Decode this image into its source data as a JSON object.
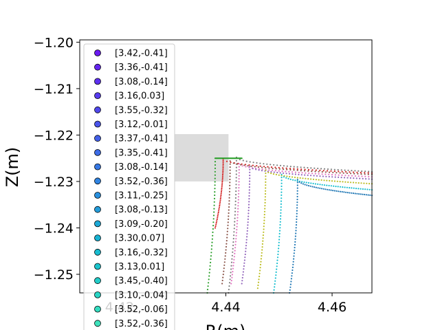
{
  "chart_data": {
    "type": "scatter",
    "xlabel": "R(m)",
    "ylabel": "Z(m)",
    "xlim": [
      4.4125,
      4.4675
    ],
    "ylim": [
      -1.254,
      -1.1995
    ],
    "x_ticks": [
      "4.42",
      "4.44",
      "4.46"
    ],
    "x_tick_values": [
      4.42,
      4.44,
      4.46
    ],
    "y_ticks": [
      "−1.20",
      "−1.21",
      "−1.22",
      "−1.23",
      "−1.24",
      "−1.25"
    ],
    "y_tick_values": [
      -1.2,
      -1.21,
      -1.22,
      -1.23,
      -1.24,
      -1.25
    ],
    "legend_placement": "upper-left",
    "legend": [
      {
        "label": "[3.42,-0.41]",
        "color": "#6a1bf0"
      },
      {
        "label": "[3.36,-0.41]",
        "color": "#6424f0"
      },
      {
        "label": "[3.08,-0.14]",
        "color": "#5d30f0"
      },
      {
        "label": "[3.16,0.03]",
        "color": "#573cee"
      },
      {
        "label": "[3.55,-0.32]",
        "color": "#5048ec"
      },
      {
        "label": "[3.12,-0.01]",
        "color": "#4a54ea"
      },
      {
        "label": "[3.37,-0.41]",
        "color": "#4360e8"
      },
      {
        "label": "[3.35,-0.41]",
        "color": "#3d6ce6"
      },
      {
        "label": "[3.08,-0.14]",
        "color": "#3678e4"
      },
      {
        "label": "[3.52,-0.36]",
        "color": "#3084e2"
      },
      {
        "label": "[3.11,-0.25]",
        "color": "#2990de"
      },
      {
        "label": "[3.08,-0.13]",
        "color": "#239cda"
      },
      {
        "label": "[3.09,-0.20]",
        "color": "#1ca8d6"
      },
      {
        "label": "[3.30,0.07]",
        "color": "#18b2d2"
      },
      {
        "label": "[3.16,-0.32]",
        "color": "#18bcd0"
      },
      {
        "label": "[3.13,0.01]",
        "color": "#1cc4cc"
      },
      {
        "label": "[3.45,-0.40]",
        "color": "#22ccc8"
      },
      {
        "label": "[3.10,-0.04]",
        "color": "#2ad4c4"
      },
      {
        "label": "[3.52,-0.06]",
        "color": "#34dcc0"
      },
      {
        "label": "[3.52,-0.36]",
        "color": "#3ee2bc"
      }
    ],
    "shaded_region": {
      "x": [
        4.4304,
        4.4405
      ],
      "y": [
        -1.23,
        -1.2198
      ],
      "color": "#dcdcdc"
    },
    "series": [
      {
        "color": "#7f7f7f",
        "x0": 4.442,
        "y_top": -1.2248,
        "x_end": 4.4675,
        "y_end": -1.2279,
        "bottom": -1.254
      },
      {
        "color": "#d62728",
        "x0": 4.4395,
        "y_top": -1.2252,
        "x_end": 4.4675,
        "y_end": -1.2282,
        "bottom": -1.24
      },
      {
        "color": "#8c564b",
        "x0": 4.4408,
        "y_top": -1.2256,
        "x_end": 4.4675,
        "y_end": -1.2285,
        "bottom": -1.252
      },
      {
        "color": "#e377c2",
        "x0": 4.4425,
        "y_top": -1.2262,
        "x_end": 4.4675,
        "y_end": -1.229,
        "bottom": -1.252
      },
      {
        "color": "#9467bd",
        "x0": 4.4445,
        "y_top": -1.2268,
        "x_end": 4.4675,
        "y_end": -1.2295,
        "bottom": -1.252
      },
      {
        "color": "#bcbd22",
        "x0": 4.4475,
        "y_top": -1.2276,
        "x_end": 4.4675,
        "y_end": -1.2305,
        "bottom": -1.253
      },
      {
        "color": "#17becf",
        "x0": 4.4505,
        "y_top": -1.2285,
        "x_end": 4.4675,
        "y_end": -1.2318,
        "bottom": -1.254
      },
      {
        "color": "#1f77b4",
        "x0": 4.4535,
        "y_top": -1.2296,
        "x_end": 4.4675,
        "y_end": -1.233,
        "bottom": -1.254
      },
      {
        "color": "#2ca02c",
        "x0": 4.438,
        "y_top": -1.225,
        "x_end": 4.443,
        "y_end": -1.225,
        "bottom": -1.254
      }
    ]
  }
}
